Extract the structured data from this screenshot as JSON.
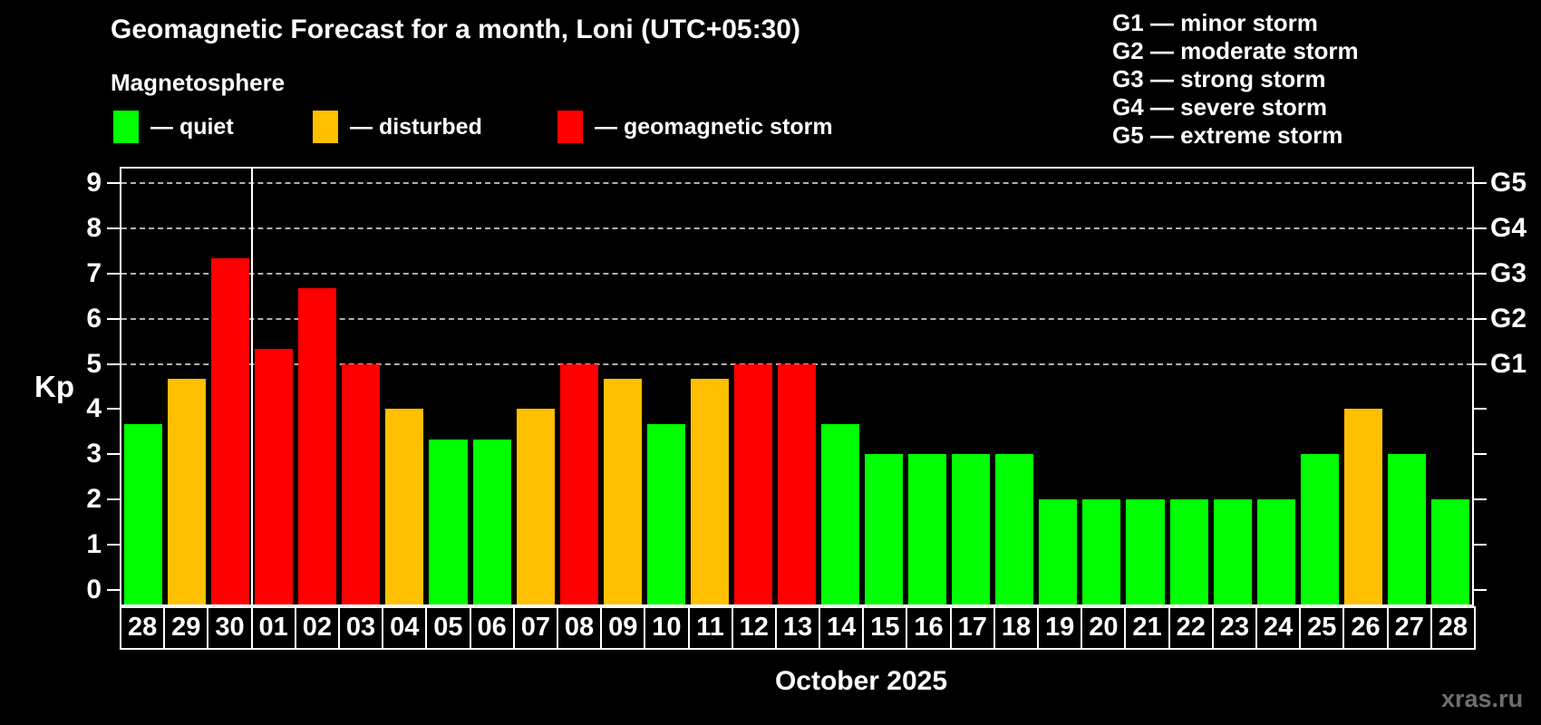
{
  "title": "Geomagnetic Forecast for a month, Loni (UTC+05:30)",
  "subtitle": "Magnetosphere",
  "watermark": "xras.ru",
  "legend": {
    "items": [
      {
        "key": "quiet",
        "label": "— quiet"
      },
      {
        "key": "disturbed",
        "label": "— disturbed"
      },
      {
        "key": "storm",
        "label": "— geomagnetic storm"
      }
    ]
  },
  "g_legend": [
    {
      "label": "G1 — minor storm"
    },
    {
      "label": "G2 — moderate storm"
    },
    {
      "label": "G3 — strong storm"
    },
    {
      "label": "G4 — severe storm"
    },
    {
      "label": "G5 — extreme storm"
    }
  ],
  "colors": {
    "quiet": "#00ff00",
    "disturbed": "#ffc000",
    "storm": "#ff0000",
    "background": "#000000",
    "text": "#ffffff",
    "grid": "#b0b0b0",
    "watermark": "#6e6e6e"
  },
  "chart_data": {
    "type": "bar",
    "title": "Geomagnetic Forecast for a month, Loni (UTC+05:30)",
    "xlabel": "October 2025",
    "ylabel": "Kp",
    "ylim": [
      0,
      9
    ],
    "categories": [
      "28",
      "29",
      "30",
      "01",
      "02",
      "03",
      "04",
      "05",
      "06",
      "07",
      "08",
      "09",
      "10",
      "11",
      "12",
      "13",
      "14",
      "15",
      "16",
      "17",
      "18",
      "19",
      "20",
      "21",
      "22",
      "23",
      "24",
      "25",
      "26",
      "27",
      "28"
    ],
    "values": [
      3.67,
      4.67,
      7.33,
      5.33,
      6.67,
      5,
      4,
      3.33,
      3.33,
      4,
      5,
      4.67,
      3.67,
      4.67,
      5,
      5,
      3.67,
      3,
      3,
      3,
      3,
      2,
      2,
      2,
      2,
      2,
      2,
      3,
      4,
      3,
      2
    ],
    "color_rule": {
      "quiet": "Kp < 4",
      "disturbed": "4 <= Kp < 5",
      "storm": "Kp >= 5"
    },
    "left_ticks": [
      0,
      1,
      2,
      3,
      4,
      5,
      6,
      7,
      8,
      9
    ],
    "right_ticks": [
      0,
      1,
      2,
      3,
      4,
      5,
      6,
      7,
      8,
      9
    ],
    "right_axis": [
      {
        "kp": 5,
        "label": "G1"
      },
      {
        "kp": 6,
        "label": "G2"
      },
      {
        "kp": 7,
        "label": "G3"
      },
      {
        "kp": 8,
        "label": "G4"
      },
      {
        "kp": 9,
        "label": "G5"
      }
    ],
    "gridlines_at_kp": [
      5,
      6,
      7,
      8,
      9
    ],
    "month_separator_after_index": 2,
    "grid": "dashed horizontal lines at G storm levels only",
    "legend_position": "top-left"
  }
}
